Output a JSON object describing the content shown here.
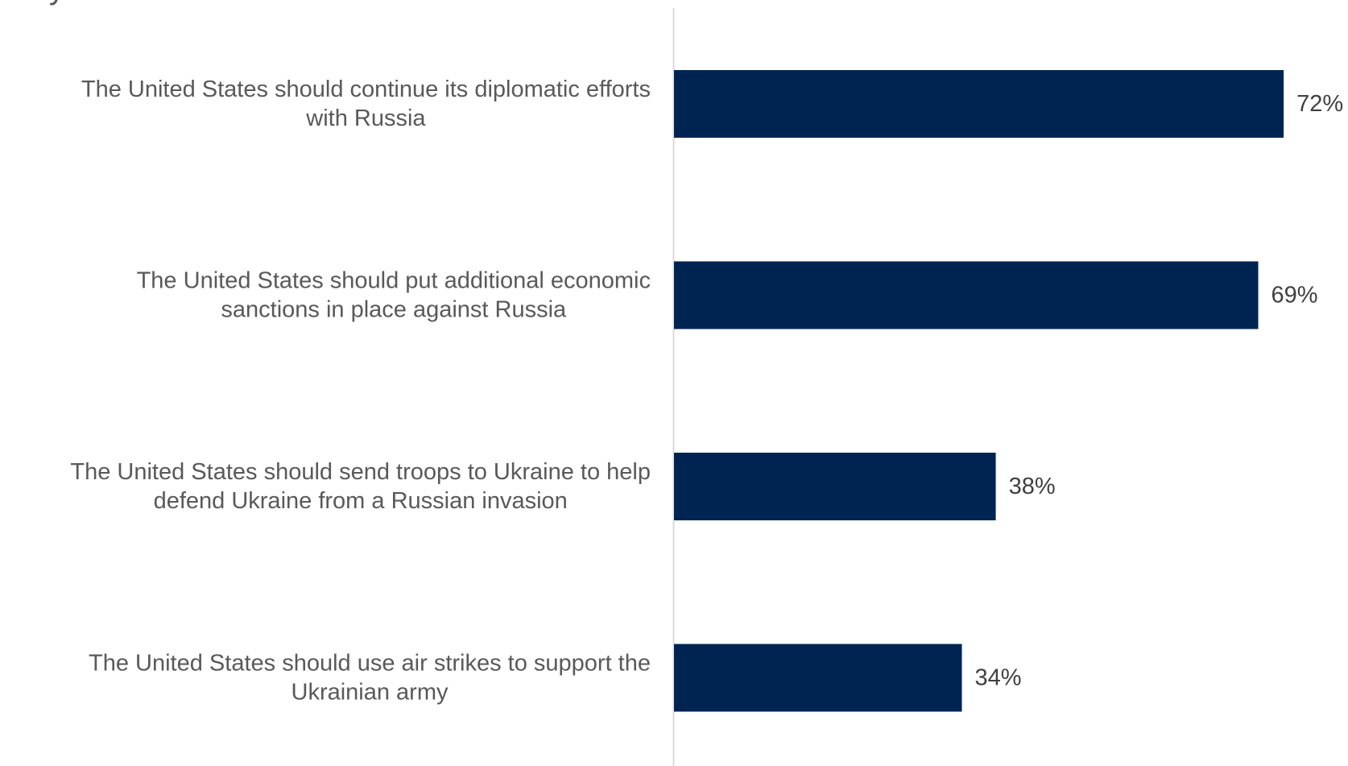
{
  "chart_data": {
    "type": "bar",
    "orientation": "horizontal",
    "categories": [
      "The United States should continue its diplomatic efforts with Russia",
      "The United States should put additional economic sanctions in place against Russia",
      "The United States should send troops to Ukraine to help defend Ukraine from a Russian invasion",
      "The United States should use air strikes to support the Ukrainian army"
    ],
    "category_lines": [
      [
        "The United States should continue its diplomatic efforts",
        "with Russia"
      ],
      [
        "The United States should put additional economic",
        "sanctions in place against Russia"
      ],
      [
        "The United States should send troops to Ukraine to help",
        "defend Ukraine from a Russian invasion"
      ],
      [
        "The United States should use air strikes to support the",
        "Ukrainian army"
      ]
    ],
    "values": [
      72,
      69,
      38,
      34
    ],
    "value_labels": [
      "72%",
      "69%",
      "38%",
      "34%"
    ],
    "unit": "%",
    "xlim": [
      0,
      100
    ],
    "grid": false,
    "legend": "none",
    "colors": {
      "bar": "#002452",
      "axis": "#d9d9d9",
      "category_text": "#595959",
      "value_text": "#404040"
    }
  }
}
